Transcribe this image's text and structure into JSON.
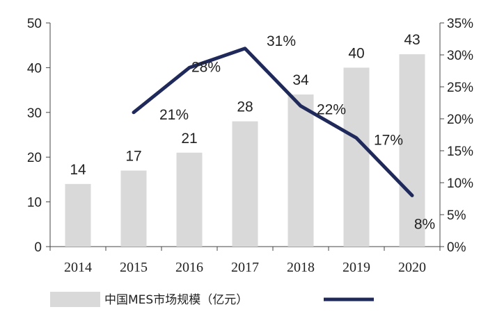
{
  "chart_data": {
    "type": "bar+line",
    "categories": [
      "2014",
      "2015",
      "2016",
      "2017",
      "2018",
      "2019",
      "2020"
    ],
    "bar_series": {
      "name": "中国MES市场规模（亿元）",
      "values": [
        14,
        17,
        21,
        28,
        34,
        40,
        43
      ],
      "labels": [
        "14",
        "17",
        "21",
        "28",
        "34",
        "40",
        "43"
      ],
      "color": "#d9d9d9"
    },
    "line_series": {
      "name": "",
      "values": [
        null,
        21,
        28,
        31,
        22,
        17,
        8
      ],
      "labels": [
        "",
        "21%",
        "28%",
        "31%",
        "22%",
        "17%",
        "8%"
      ],
      "color": "#1f2a5a"
    },
    "y_left": {
      "ylim": [
        0,
        50
      ],
      "ticks": [
        "0",
        "10",
        "20",
        "30",
        "40",
        "50"
      ]
    },
    "y_right": {
      "ylim": [
        0,
        35
      ],
      "ticks": [
        "0%",
        "5%",
        "10%",
        "15%",
        "20%",
        "25%",
        "30%",
        "35%"
      ]
    },
    "grid": false,
    "legend_position": "bottom"
  }
}
